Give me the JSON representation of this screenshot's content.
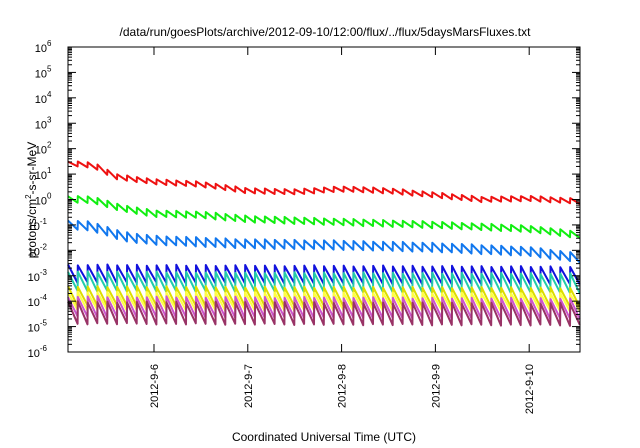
{
  "chart_data": {
    "type": "line",
    "title": "/data/run/goesPlots/archive/2012-09-10/12:00/flux/../flux/5daysMarsFluxes.txt",
    "xlabel": "Coordinated Universal Time (UTC)",
    "ylabel": {
      "pre": "protons/cm",
      "sup": "2",
      "post": "-s-sr-MeV"
    },
    "yscale": "log",
    "ylim": [
      1e-06,
      1000000.0
    ],
    "xlim": [
      "2012-09-05T02:00",
      "2012-09-10T13:00"
    ],
    "grid": false,
    "legend": "none",
    "x_ticks": [
      "2012-9-6",
      "2012-9-7",
      "2012-9-8",
      "2012-9-9",
      "2012-9-10"
    ],
    "y_ticks": [
      {
        "base": "10",
        "exp": "-6"
      },
      {
        "base": "10",
        "exp": "-5"
      },
      {
        "base": "10",
        "exp": "-4"
      },
      {
        "base": "10",
        "exp": "-3"
      },
      {
        "base": "10",
        "exp": "-2"
      },
      {
        "base": "10",
        "exp": "-1"
      },
      {
        "base": "10",
        "exp": "0"
      },
      {
        "base": "10",
        "exp": "1"
      },
      {
        "base": "10",
        "exp": "2"
      },
      {
        "base": "10",
        "exp": "3"
      },
      {
        "base": "10",
        "exp": "4"
      },
      {
        "base": "10",
        "exp": "5"
      },
      {
        "base": "10",
        "exp": "6"
      }
    ],
    "cycles": 52,
    "series": [
      {
        "color": "#ee1111",
        "x": [
          "2012-09-05T02:00",
          "2012-09-05T06:00",
          "2012-09-05T10:00",
          "2012-09-05T14:00",
          "2012-09-06T00:00",
          "2012-09-06T12:00",
          "2012-09-07T00:00",
          "2012-09-07T12:00",
          "2012-09-08T00:00",
          "2012-09-08T12:00",
          "2012-09-09T00:00",
          "2012-09-09T12:00",
          "2012-09-10T00:00",
          "2012-09-10T13:00"
        ],
        "y": [
          25,
          25,
          18,
          8,
          5,
          4,
          2.2,
          2.0,
          2.6,
          2.2,
          1.5,
          1.0,
          1.1,
          0.85
        ],
        "sawtooth": 0.2
      },
      {
        "color": "#11ee11",
        "x": [
          "2012-09-05T02:00",
          "2012-09-05T08:00",
          "2012-09-05T16:00",
          "2012-09-06T00:00",
          "2012-09-06T12:00",
          "2012-09-07T00:00",
          "2012-09-08T00:00",
          "2012-09-09T00:00",
          "2012-09-10T00:00",
          "2012-09-10T13:00"
        ],
        "y": [
          1.0,
          1.0,
          0.45,
          0.28,
          0.25,
          0.17,
          0.13,
          0.1,
          0.07,
          0.04
        ],
        "sawtooth": 0.25
      },
      {
        "color": "#1177ee",
        "x": [
          "2012-09-05T02:00",
          "2012-09-05T08:00",
          "2012-09-05T16:00",
          "2012-09-06T00:00",
          "2012-09-07T00:00",
          "2012-09-08T00:00",
          "2012-09-09T00:00",
          "2012-09-10T00:00",
          "2012-09-10T13:00"
        ],
        "y": [
          0.1,
          0.09,
          0.035,
          0.025,
          0.018,
          0.016,
          0.013,
          0.009,
          0.005
        ],
        "sawtooth": 0.35
      },
      {
        "color": "#1111dd",
        "x": [
          "2012-09-05T02:00",
          "2012-09-10T13:00"
        ],
        "y": [
          0.0012,
          0.001
        ],
        "sawtooth": 0.7
      },
      {
        "color": "#22ccaa",
        "x": [
          "2012-09-05T02:00",
          "2012-09-10T13:00"
        ],
        "y": [
          0.0006,
          0.0005
        ],
        "sawtooth": 0.75
      },
      {
        "color": "#dddd00",
        "x": [
          "2012-09-05T02:00",
          "2012-09-10T13:00"
        ],
        "y": [
          0.00016,
          0.00014
        ],
        "sawtooth": 0.75
      },
      {
        "color": "#ffff44",
        "x": [
          "2012-09-05T02:00",
          "2012-09-10T13:00"
        ],
        "y": [
          0.0001,
          9e-05
        ],
        "sawtooth": 0.7
      },
      {
        "color": "#cc55cc",
        "x": [
          "2012-09-05T02:00",
          "2012-09-10T13:00"
        ],
        "y": [
          6e-05,
          5e-05
        ],
        "sawtooth": 0.8
      },
      {
        "color": "#993366",
        "x": [
          "2012-09-05T02:00",
          "2012-09-10T13:00"
        ],
        "y": [
          3.5e-05,
          3e-05
        ],
        "sawtooth": 0.85
      }
    ]
  }
}
